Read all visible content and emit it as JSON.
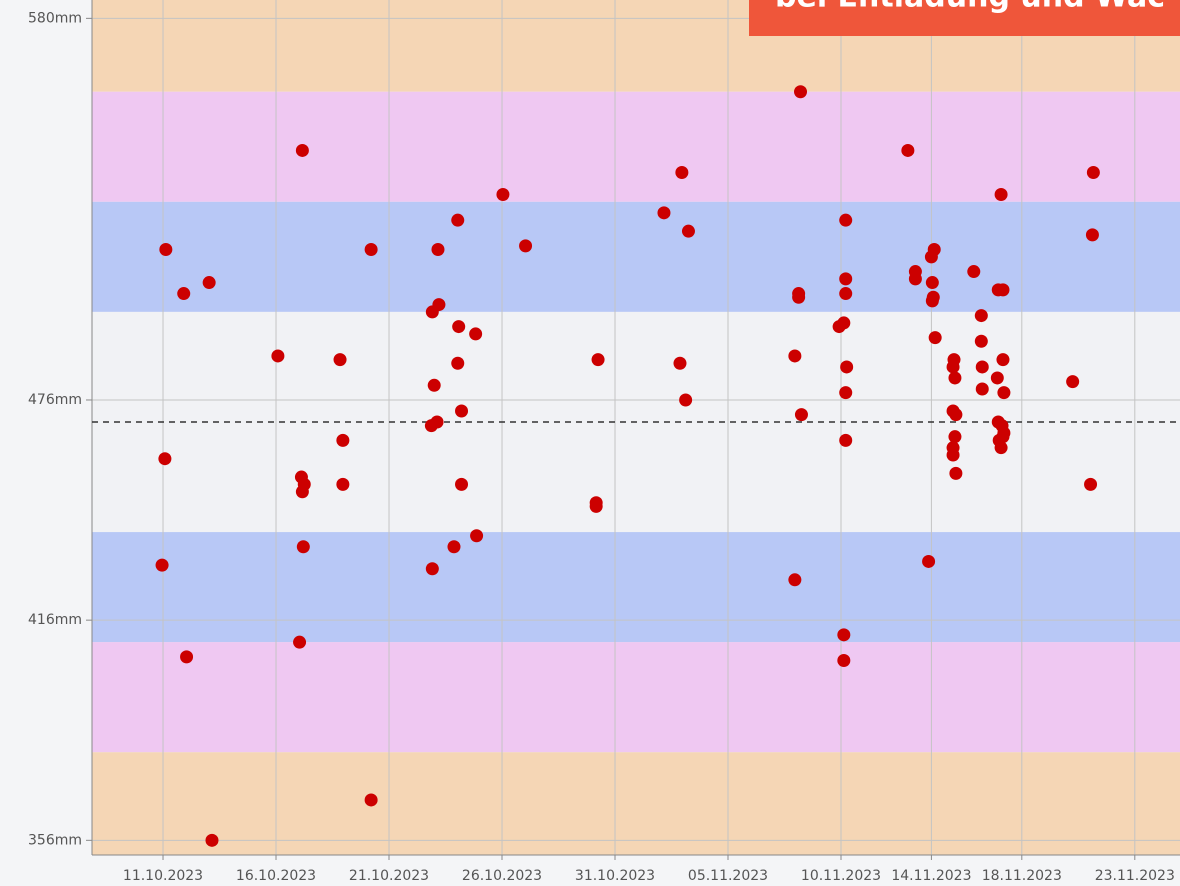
{
  "chart_data": {
    "type": "scatter",
    "banner": "bei Entladung und Wac",
    "color": "#cc0000",
    "xlim": [
      "2023-10-07T20:35",
      "2023-11-25T00:00"
    ],
    "ylim": [
      352,
      585
    ],
    "yticks": [
      {
        "value": 580,
        "label": "580mm"
      },
      {
        "value": 476,
        "label": "476mm"
      },
      {
        "value": 416,
        "label": "416mm"
      },
      {
        "value": 356,
        "label": "356mm"
      }
    ],
    "xticks": [
      {
        "value": "2023-10-11T00:00",
        "label": "11.10.2023"
      },
      {
        "value": "2023-10-16T00:00",
        "label": "16.10.2023"
      },
      {
        "value": "2023-10-21T00:00",
        "label": "21.10.2023"
      },
      {
        "value": "2023-10-26T00:00",
        "label": "26.10.2023"
      },
      {
        "value": "2023-10-31T00:00",
        "label": "31.10.2023"
      },
      {
        "value": "2023-11-05T00:00",
        "label": "05.11.2023"
      },
      {
        "value": "2023-11-10T00:00",
        "label": "10.11.2023"
      },
      {
        "value": "2023-11-14T00:00",
        "label": "14.11.2023"
      },
      {
        "value": "2023-11-18T00:00",
        "label": "18.11.2023"
      },
      {
        "value": "2023-11-23T00:00",
        "label": "23.11.2023"
      }
    ],
    "grid": true,
    "bands": [
      {
        "from": 560,
        "to": 585,
        "color": "#f5d6b5"
      },
      {
        "from": 530,
        "to": 560,
        "color": "#efc8f2"
      },
      {
        "from": 500,
        "to": 530,
        "color": "#b8c8f6"
      },
      {
        "from": 440,
        "to": 500,
        "color": "#f1f2f5"
      },
      {
        "from": 410,
        "to": 440,
        "color": "#b8c8f6"
      },
      {
        "from": 380,
        "to": 410,
        "color": "#efc8f2"
      },
      {
        "from": 352,
        "to": 380,
        "color": "#f5d6b5"
      }
    ],
    "reference_line": 470,
    "x": [
      "2023-10-11T03:00",
      "2023-10-11T22:00",
      "2023-10-13T01:00",
      "2023-10-11T02:00",
      "2023-10-10T23:00",
      "2023-10-12T01:00",
      "2023-10-13T04:00",
      "2023-10-17T04:00",
      "2023-10-16T02:00",
      "2023-10-17T03:00",
      "2023-10-17T06:00",
      "2023-10-17T04:00",
      "2023-10-17T05:00",
      "2023-10-17T01:00",
      "2023-10-18T20:00",
      "2023-10-18T23:00",
      "2023-10-18T23:00",
      "2023-10-20T05:00",
      "2023-10-20T05:00",
      "2023-10-23T04:00",
      "2023-10-24T01:00",
      "2023-10-23T05:00",
      "2023-10-22T22:00",
      "2023-10-24T02:00",
      "2023-10-24T20:00",
      "2023-10-24T01:00",
      "2023-10-23T00:00",
      "2023-10-24T05:00",
      "2023-10-23T03:00",
      "2023-10-22T21:00",
      "2023-10-24T05:00",
      "2023-10-23T21:00",
      "2023-10-24T21:00",
      "2023-10-22T22:00",
      "2023-10-26T01:00",
      "2023-10-27T01:00",
      "2023-10-30T06:00",
      "2023-10-30T04:00",
      "2023-10-30T04:00",
      "2023-11-02T04:00",
      "2023-11-02T23:00",
      "2023-11-03T06:00",
      "2023-11-02T21:00",
      "2023-11-03T03:00",
      "2023-11-08T05:00",
      "2023-11-08T03:00",
      "2023-11-08T03:00",
      "2023-11-07T23:00",
      "2023-11-08T06:00",
      "2023-11-07T23:00",
      "2023-11-10T05:00",
      "2023-11-10T05:00",
      "2023-11-10T05:00",
      "2023-11-10T03:00",
      "2023-11-09T22:00",
      "2023-11-10T06:00",
      "2023-11-10T05:00",
      "2023-11-10T05:00",
      "2023-11-10T03:00",
      "2023-11-10T03:00",
      "2023-11-12T23:00",
      "2023-11-13T07:00",
      "2023-11-13T07:00",
      "2023-11-14T03:00",
      "2023-11-14T00:00",
      "2023-11-14T01:00",
      "2023-11-14T02:00",
      "2023-11-14T01:00",
      "2023-11-14T04:00",
      "2023-11-13T21:00",
      "2023-11-17T02:00",
      "2023-11-15T21:00",
      "2023-11-16T23:00",
      "2023-11-17T04:00",
      "2023-11-16T05:00",
      "2023-11-16T05:00",
      "2023-11-15T00:00",
      "2023-11-14T23:00",
      "2023-11-16T06:00",
      "2023-11-17T04:00",
      "2023-11-15T01:00",
      "2023-11-16T22:00",
      "2023-11-16T06:00",
      "2023-11-17T05:00",
      "2023-11-14T23:00",
      "2023-11-15T02:00",
      "2023-11-16T23:00",
      "2023-11-17T03:00",
      "2023-11-17T05:00",
      "2023-11-15T01:00",
      "2023-11-17T00:00",
      "2023-11-17T04:00",
      "2023-11-17T02:00",
      "2023-11-14T23:00",
      "2023-11-14T23:00",
      "2023-11-15T02:00",
      "2023-11-20T06:00",
      "2023-11-21T04:00",
      "2023-11-21T03:00",
      "2023-11-21T01:00"
    ],
    "values": [
      517,
      505,
      508,
      460,
      431,
      406,
      356,
      544,
      488,
      455,
      453,
      451,
      436,
      410,
      487,
      465,
      453,
      517,
      367,
      517,
      525,
      502,
      500,
      496,
      494,
      486,
      480,
      473,
      470,
      469,
      453,
      436,
      439,
      430,
      532,
      518,
      487,
      448,
      447,
      527,
      538,
      522,
      486,
      476,
      560,
      505,
      504,
      488,
      472,
      427,
      525,
      509,
      505,
      497,
      496,
      485,
      478,
      465,
      412,
      405,
      544,
      511,
      509,
      517,
      515,
      508,
      504,
      503,
      493,
      432,
      532,
      511,
      506,
      506,
      499,
      492,
      487,
      485,
      485,
      487,
      482,
      482,
      479,
      478,
      473,
      472,
      470,
      469,
      467,
      466,
      465,
      466,
      463,
      463,
      461,
      456,
      481,
      538,
      521,
      453
    ]
  }
}
